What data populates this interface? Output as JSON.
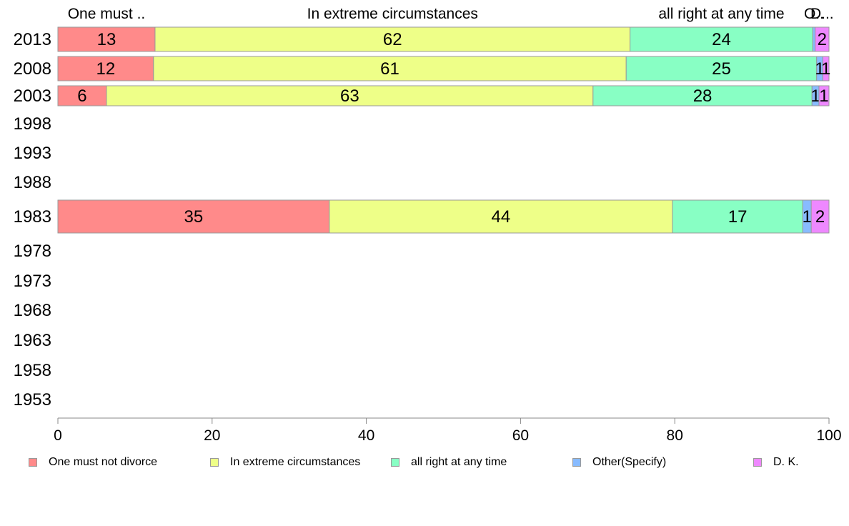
{
  "chart_data": {
    "type": "bar",
    "orientation": "horizontal",
    "stacked": true,
    "categories": [
      "2013",
      "2008",
      "2003",
      "1998",
      "1993",
      "1988",
      "1983",
      "1978",
      "1973",
      "1968",
      "1963",
      "1958",
      "1953"
    ],
    "series": [
      {
        "name": "One must not divorce",
        "short_label": "One must ..",
        "color": "#ff8a8a",
        "values": [
          12.6,
          12.4,
          6.3,
          null,
          null,
          null,
          35.2,
          null,
          null,
          null,
          null,
          null,
          null
        ],
        "labels": [
          "13",
          "12",
          "6",
          "",
          "",
          "",
          "35",
          "",
          "",
          "",
          "",
          "",
          ""
        ]
      },
      {
        "name": "In extreme circumstances",
        "short_label": "In extreme circumstances",
        "color": "#eeff88",
        "values": [
          61.6,
          61.3,
          63.1,
          null,
          null,
          null,
          44.5,
          null,
          null,
          null,
          null,
          null,
          null
        ],
        "labels": [
          "62",
          "61",
          "63",
          "",
          "",
          "",
          "44",
          "",
          "",
          "",
          "",
          "",
          ""
        ]
      },
      {
        "name": "all right at any time",
        "short_label": "all right at any time",
        "color": "#88ffc4",
        "values": [
          23.7,
          24.7,
          28.4,
          null,
          null,
          null,
          16.9,
          null,
          null,
          null,
          null,
          null,
          null
        ],
        "labels": [
          "24",
          "25",
          "28",
          "",
          "",
          "",
          "17",
          "",
          "",
          "",
          "",
          "",
          ""
        ]
      },
      {
        "name": "Other(Specify)",
        "short_label": "O..",
        "color": "#88bbff",
        "values": [
          0.3,
          0.8,
          0.9,
          null,
          null,
          null,
          1.1,
          null,
          null,
          null,
          null,
          null,
          null
        ],
        "labels": [
          "",
          "1",
          "1",
          "",
          "",
          "",
          "1",
          "",
          "",
          "",
          "",
          "",
          ""
        ]
      },
      {
        "name": "D. K.",
        "short_label": "D...",
        "color": "#ee88ff",
        "values": [
          1.8,
          0.8,
          1.3,
          null,
          null,
          null,
          2.3,
          null,
          null,
          null,
          null,
          null,
          null
        ],
        "labels": [
          "2",
          "1",
          "1",
          "",
          "",
          "",
          "2",
          "",
          "",
          "",
          "",
          "",
          ""
        ]
      }
    ],
    "xlim": [
      0,
      100
    ],
    "xticks": [
      0,
      20,
      40,
      60,
      80,
      100
    ],
    "grid": false,
    "legend_position": "bottom",
    "title": "",
    "xlabel": "",
    "ylabel": ""
  }
}
